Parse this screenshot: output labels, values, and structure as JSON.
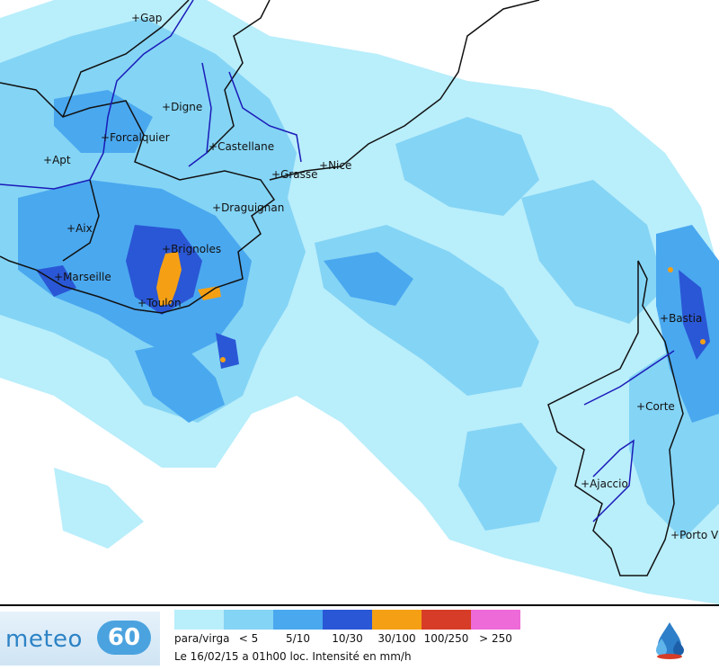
{
  "map": {
    "cities": [
      {
        "name": "Gap"
      },
      {
        "name": "Digne"
      },
      {
        "name": "Forcalquier"
      },
      {
        "name": "Castellane"
      },
      {
        "name": "Apt"
      },
      {
        "name": "Grasse"
      },
      {
        "name": "Nice"
      },
      {
        "name": "Draguignan"
      },
      {
        "name": "Aix"
      },
      {
        "name": "Brignoles"
      },
      {
        "name": "Marseille"
      },
      {
        "name": "Toulon"
      },
      {
        "name": "Bastia"
      },
      {
        "name": "Corte"
      },
      {
        "name": "Ajaccio"
      },
      {
        "name": "Porto V"
      }
    ],
    "marker_symbol": "+"
  },
  "brand": {
    "name": "meteo",
    "badge": "60",
    "partner_icon": "water-drops-logo-icon"
  },
  "legend": {
    "items": [
      {
        "label": "para/virga",
        "color": "#b9eefb"
      },
      {
        "label": "< 5",
        "color": "#84d4f5"
      },
      {
        "label": "5/10",
        "color": "#4aa8ef"
      },
      {
        "label": "10/30",
        "color": "#2a57d6"
      },
      {
        "label": "30/100",
        "color": "#f5a014"
      },
      {
        "label": "100/250",
        "color": "#d63c27"
      },
      {
        "label": "> 250",
        "color": "#ee6ad8"
      }
    ],
    "caption": "Le 16/02/15 a 01h00 loc. Intensité en mm/h"
  }
}
